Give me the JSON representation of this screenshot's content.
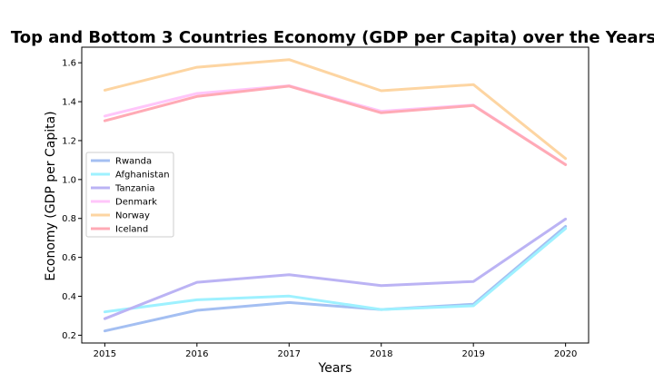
{
  "chart_data": {
    "type": "line",
    "title": "Top and Bottom 3 Countries Economy (GDP per Capita) over the Years",
    "xlabel": "Years",
    "ylabel": "Economy (GDP per Capita)",
    "x": [
      2015,
      2016,
      2017,
      2018,
      2019,
      2020
    ],
    "xlim": [
      2014.75,
      2020.25
    ],
    "ylim": [
      0.16,
      1.68
    ],
    "yticks": [
      "0.2",
      "0.4",
      "0.6",
      "0.8",
      "1.0",
      "1.2",
      "1.4",
      "1.6"
    ],
    "grid": false,
    "legend_position": "center-left",
    "series": [
      {
        "name": "Rwanda",
        "color": "#a4bff2",
        "values": [
          0.222,
          0.328,
          0.368,
          0.332,
          0.359,
          0.759
        ]
      },
      {
        "name": "Afghanistan",
        "color": "#9ef1ff",
        "values": [
          0.32,
          0.382,
          0.401,
          0.332,
          0.351,
          0.748
        ]
      },
      {
        "name": "Tanzania",
        "color": "#bbb3f4",
        "values": [
          0.285,
          0.472,
          0.511,
          0.455,
          0.476,
          0.797
        ]
      },
      {
        "name": "Denmark",
        "color": "#ffc6fa",
        "values": [
          1.326,
          1.442,
          1.482,
          1.351,
          1.383,
          1.077
        ]
      },
      {
        "name": "Norway",
        "color": "#fdd5a2",
        "values": [
          1.459,
          1.577,
          1.616,
          1.456,
          1.488,
          1.108
        ]
      },
      {
        "name": "Iceland",
        "color": "#ffaab5",
        "values": [
          1.302,
          1.427,
          1.48,
          1.343,
          1.38,
          1.076
        ]
      }
    ]
  }
}
